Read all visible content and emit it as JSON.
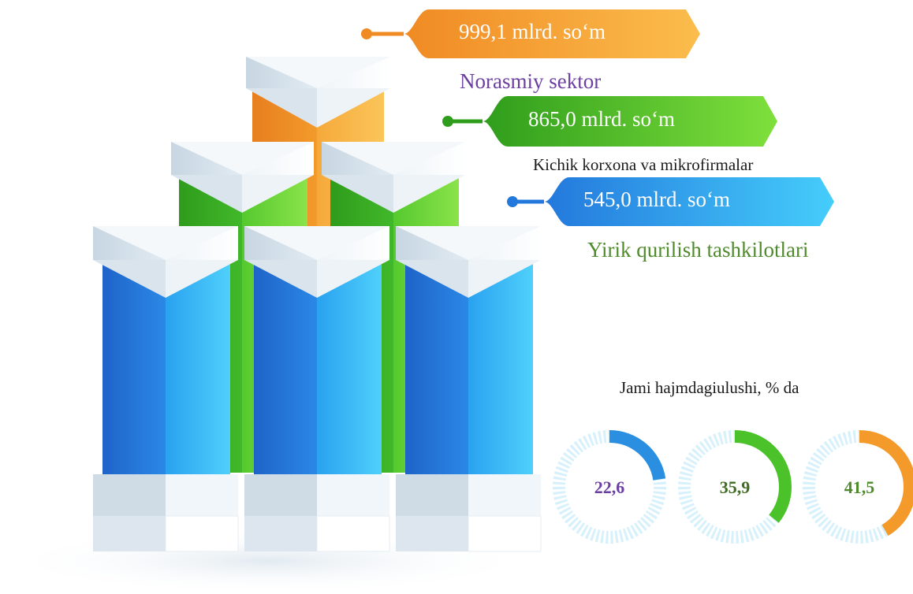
{
  "chart_data": {
    "type": "bar",
    "categories": [
      "Norasmiy sektor",
      "Kichik korxona va mikrofirmalar",
      "Yirik qurilish tashkilotlari"
    ],
    "values": [
      999.1,
      865.0,
      545.0
    ],
    "value_labels": [
      "999,1 mlrd. so‘m",
      "865,0 mlrd. so‘m",
      "545,0 mlrd. so‘m"
    ],
    "colors": [
      "#f39a2b",
      "#4cc22a",
      "#2a8fe0"
    ],
    "share": {
      "title": "Jami hajmdagiulushi, % da",
      "values": [
        22.6,
        35.9,
        41.5
      ],
      "value_labels": [
        "22,6",
        "35,9",
        "41,5"
      ],
      "colors": [
        "#2a8fe0",
        "#4cc22a",
        "#f39a2b"
      ],
      "text_colors": [
        "#6b3fa0",
        "#3f6b22",
        "#4f8a2c"
      ]
    },
    "legend": "none",
    "grid": false
  }
}
